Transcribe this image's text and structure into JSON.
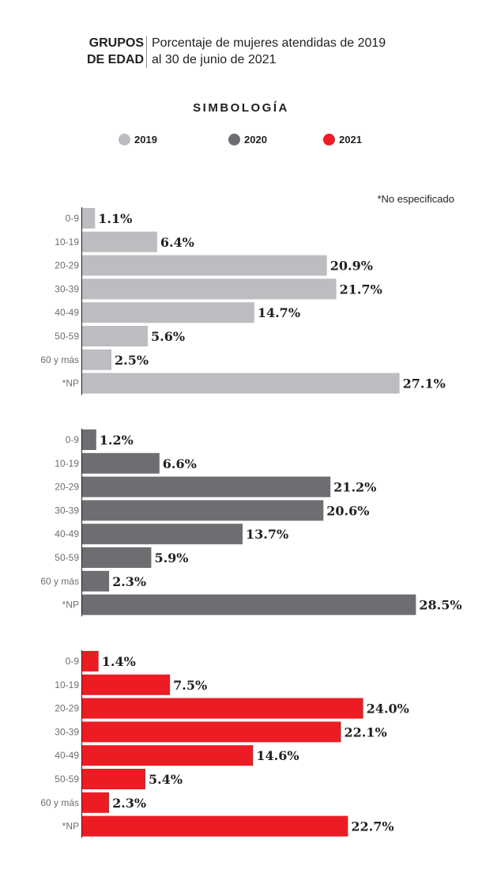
{
  "header": {
    "title_line1": "GRUPOS",
    "title_line2": "DE EDAD",
    "subtitle_line1": "Porcentaje de mujeres atendidas de 2019",
    "subtitle_line2": "al 30 de junio de 2021"
  },
  "legend": {
    "title": "SIMBOLOGÍA",
    "items": [
      {
        "label": "2019",
        "color": "#bcbdc0"
      },
      {
        "label": "2020",
        "color": "#6d6e71"
      },
      {
        "label": "2021",
        "color": "#ed1c24"
      }
    ]
  },
  "note": "*No especificado",
  "chart_data": {
    "type": "bar",
    "orientation": "horizontal",
    "categories": [
      "0-9",
      "10-19",
      "20-29",
      "30-39",
      "40-49",
      "50-59",
      "60 y más",
      "*NP"
    ],
    "value_suffix": "%",
    "series": [
      {
        "name": "2019",
        "color": "#bcbdc0",
        "values": [
          1.1,
          6.4,
          20.9,
          21.7,
          14.7,
          5.6,
          2.5,
          27.1
        ],
        "labels": [
          "1.1%",
          "6.4%",
          "20.9%",
          "21.7%",
          "14.7%",
          "5.6%",
          "2.5%",
          "27.1%"
        ]
      },
      {
        "name": "2020",
        "color": "#6d6e71",
        "values": [
          1.2,
          6.6,
          21.2,
          20.6,
          13.7,
          5.9,
          2.3,
          28.5
        ],
        "labels": [
          "1.2%",
          "6.6%",
          "21.2%",
          "20.6%",
          "13.7%",
          "5.9%",
          "2.3%",
          "28.5%"
        ]
      },
      {
        "name": "2021",
        "color": "#ed1c24",
        "values": [
          1.4,
          7.5,
          24.0,
          22.1,
          14.6,
          5.4,
          2.3,
          22.7
        ],
        "labels": [
          "1.4%",
          "7.5%",
          "24.0%",
          "22.1%",
          "14.6%",
          "5.4%",
          "2.3%",
          "22.7%"
        ]
      }
    ]
  }
}
